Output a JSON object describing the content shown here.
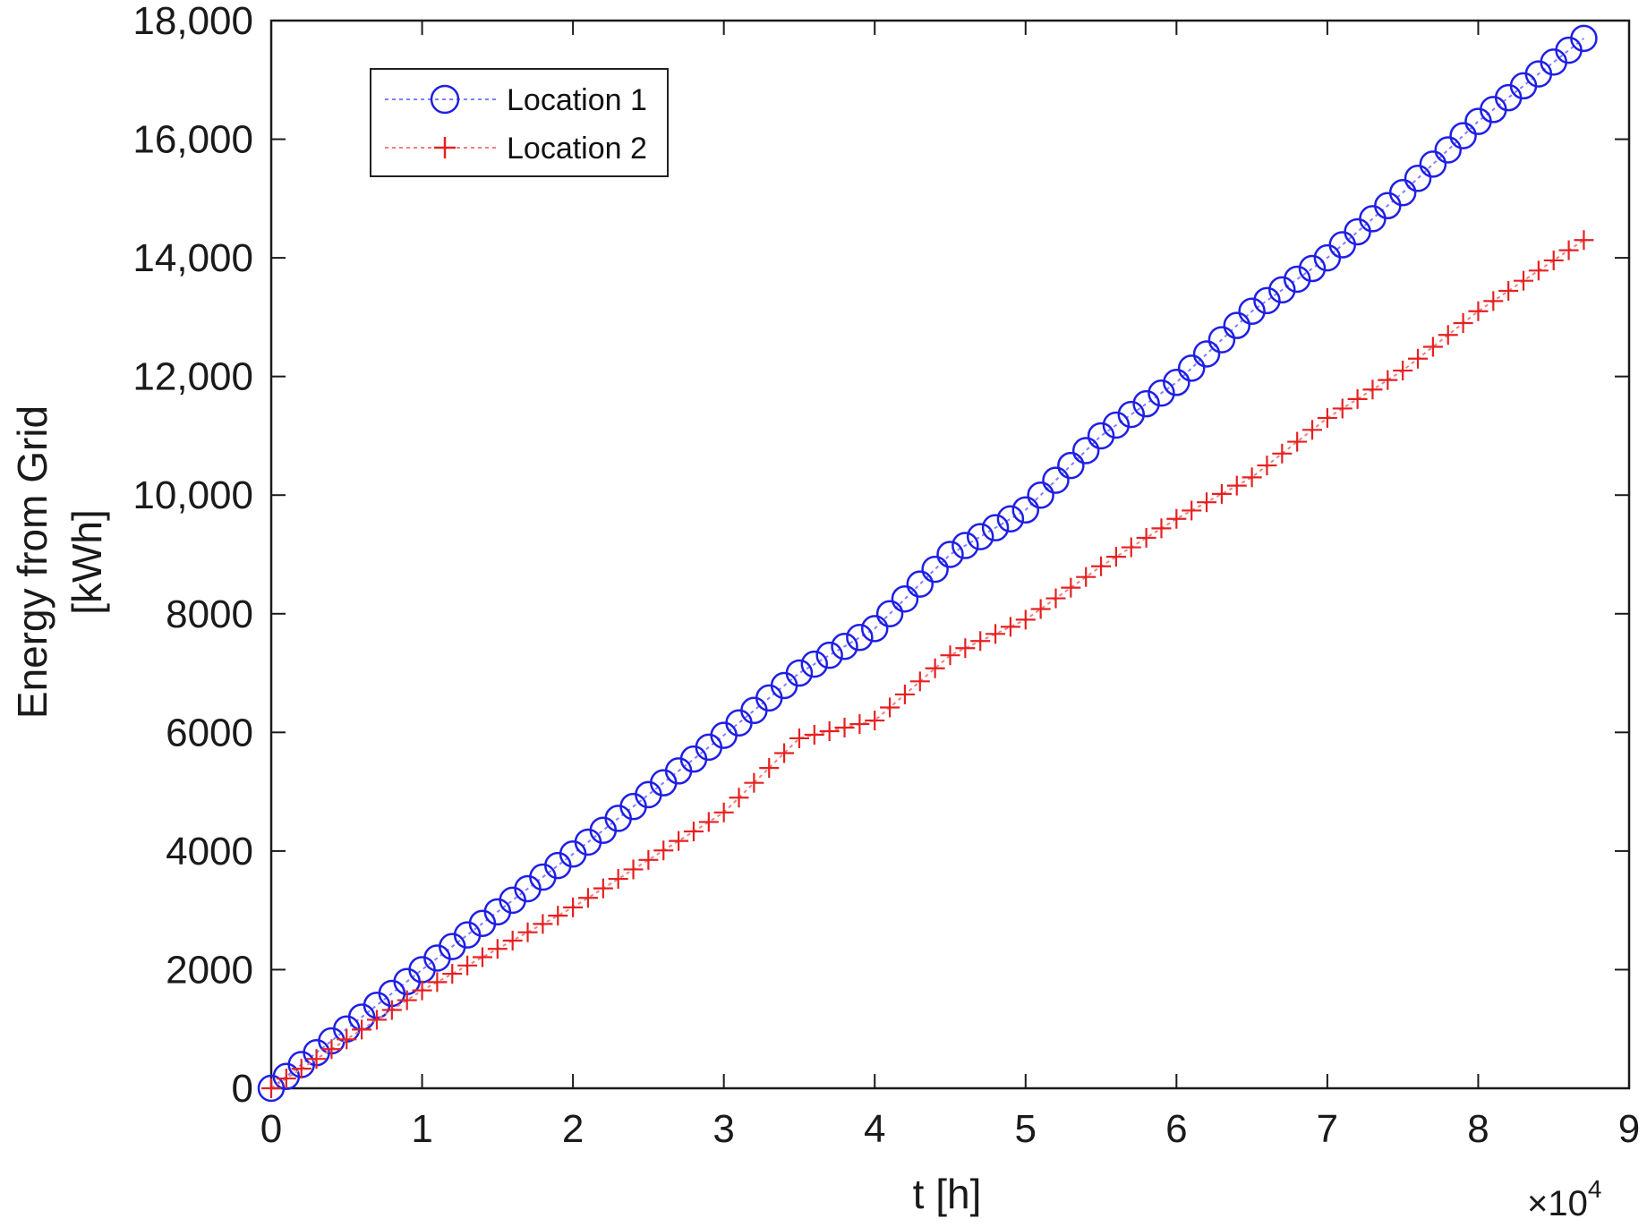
{
  "chart_data": {
    "type": "line",
    "title": "",
    "xlabel": "t [h]",
    "ylabel_lines": [
      "Energy from Grid",
      "[kWh]"
    ],
    "x_multiplier": "×10",
    "x_multiplier_exp": "4",
    "xlim": [
      0,
      90000
    ],
    "ylim": [
      0,
      18000
    ],
    "x_ticks": [
      0,
      10000,
      20000,
      30000,
      40000,
      50000,
      60000,
      70000,
      80000,
      90000
    ],
    "x_tick_labels": [
      "0",
      "1",
      "2",
      "3",
      "4",
      "5",
      "6",
      "7",
      "8",
      "9"
    ],
    "y_ticks": [
      0,
      2000,
      4000,
      6000,
      8000,
      10000,
      12000,
      14000,
      16000,
      18000
    ],
    "y_tick_labels": [
      "0",
      "2000",
      "4000",
      "6000",
      "8000",
      "10,000",
      "12,000",
      "14,000",
      "16,000",
      "18,000"
    ],
    "grid": false,
    "legend_position": "top-left",
    "series": [
      {
        "name": "Location 1",
        "color": "#1f1fe6",
        "marker": "circle",
        "x": [
          0,
          10000,
          20000,
          30000,
          35000,
          40000,
          45000,
          50000,
          55000,
          60000,
          65000,
          70000,
          75000,
          80000,
          87000
        ],
        "y": [
          0,
          2000,
          3950,
          5950,
          7000,
          7750,
          9000,
          9750,
          11000,
          11900,
          13100,
          14000,
          15100,
          16300,
          17700
        ]
      },
      {
        "name": "Location 2",
        "color": "#e62020",
        "marker": "plus",
        "x": [
          0,
          10000,
          20000,
          30000,
          35000,
          40000,
          45000,
          50000,
          55000,
          60000,
          65000,
          70000,
          75000,
          80000,
          87000
        ],
        "y": [
          0,
          1650,
          3050,
          4650,
          5900,
          6200,
          7300,
          7900,
          8800,
          9600,
          10300,
          11300,
          12100,
          13100,
          14300
        ]
      }
    ]
  }
}
